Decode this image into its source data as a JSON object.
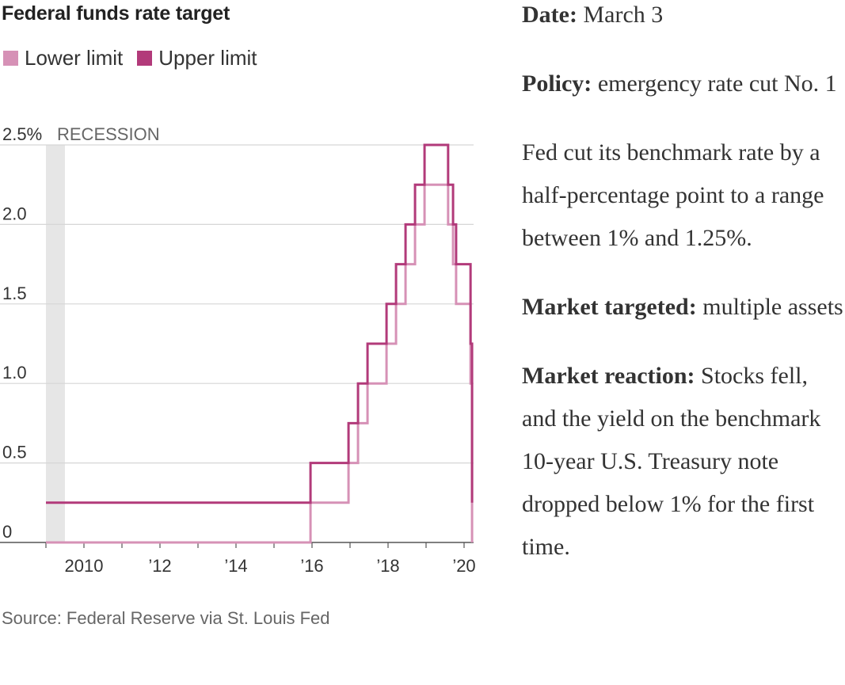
{
  "chart_data": {
    "type": "line",
    "title": "Federal funds rate target",
    "legend": [
      {
        "name": "Lower limit",
        "color": "#d691b6"
      },
      {
        "name": "Upper limit",
        "color": "#b23a7a"
      }
    ],
    "legend_position": "top-left",
    "y_tick_labels": [
      "0",
      "0.5",
      "1.0",
      "1.5",
      "2.0",
      "2.5%"
    ],
    "y_ticks": [
      0,
      0.5,
      1.0,
      1.5,
      2.0,
      2.5
    ],
    "ylim": [
      0,
      2.5
    ],
    "x_tick_labels": [
      "2010",
      "’12",
      "’14",
      "’16",
      "’18",
      "’20"
    ],
    "x_ticks": [
      2010,
      2012,
      2014,
      2016,
      2018,
      2020
    ],
    "xlim": [
      2009.0,
      2020.25
    ],
    "grid": "horizontal",
    "recession": {
      "label": "RECESSION",
      "start": 2009.0,
      "end": 2009.5
    },
    "series": [
      {
        "name": "Lower limit",
        "color": "#d691b6",
        "steps": [
          [
            2009.0,
            0
          ],
          [
            2015.96,
            0.25
          ],
          [
            2016.96,
            0.5
          ],
          [
            2017.21,
            0.75
          ],
          [
            2017.46,
            1.0
          ],
          [
            2017.96,
            1.25
          ],
          [
            2018.21,
            1.5
          ],
          [
            2018.46,
            1.75
          ],
          [
            2018.71,
            2.0
          ],
          [
            2018.96,
            2.25
          ],
          [
            2019.58,
            2.0
          ],
          [
            2019.71,
            1.75
          ],
          [
            2019.79,
            1.5
          ],
          [
            2020.17,
            1.0
          ],
          [
            2020.21,
            0
          ]
        ],
        "end": 2020.21
      },
      {
        "name": "Upper limit",
        "color": "#b23a7a",
        "steps": [
          [
            2009.0,
            0.25
          ],
          [
            2015.96,
            0.5
          ],
          [
            2016.96,
            0.75
          ],
          [
            2017.21,
            1.0
          ],
          [
            2017.46,
            1.25
          ],
          [
            2017.96,
            1.5
          ],
          [
            2018.21,
            1.75
          ],
          [
            2018.46,
            2.0
          ],
          [
            2018.71,
            2.25
          ],
          [
            2018.96,
            2.5
          ],
          [
            2019.58,
            2.25
          ],
          [
            2019.71,
            2.0
          ],
          [
            2019.79,
            1.75
          ],
          [
            2020.17,
            1.25
          ],
          [
            2020.21,
            0.25
          ]
        ],
        "end": 2020.21
      }
    ]
  },
  "source": "Source: Federal Reserve via St. Louis Fed",
  "info": {
    "date_label": "Date:",
    "date_value": " March 3",
    "policy_label": "Policy:",
    "policy_value": " emergency rate cut No. 1",
    "summary": "Fed cut its benchmark rate by a half-percentage point to a range between 1% and 1.25%.",
    "market_label": "Market targeted:",
    "market_value": " multiple assets",
    "reaction_label": "Market reaction:",
    "reaction_value": " Stocks fell, and the yield on the benchmark 10-year U.S. Treasury note dropped below 1% for the first time."
  }
}
